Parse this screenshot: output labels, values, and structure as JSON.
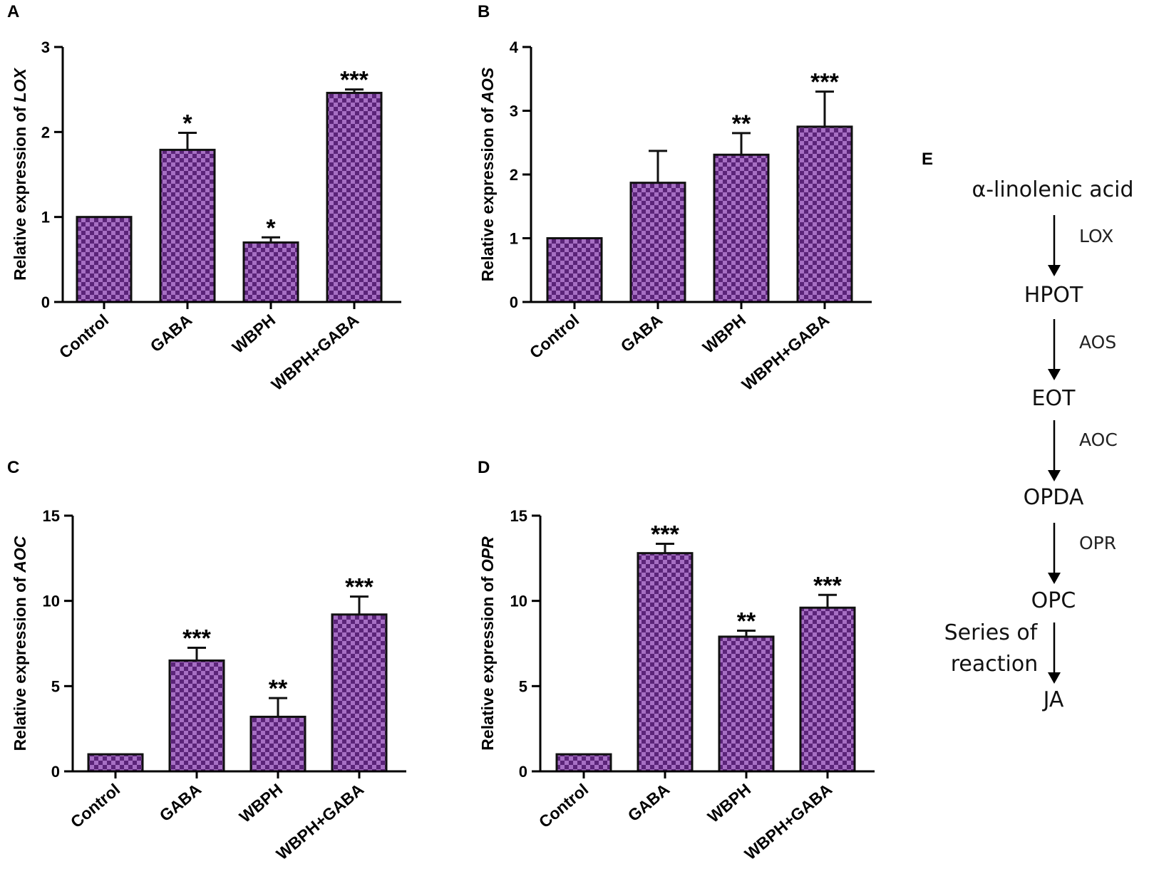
{
  "colors": {
    "bar_dark": "#5b2479",
    "bar_light": "#a66fc3",
    "bar_edge": "#111111",
    "axis": "#000000"
  },
  "chart_data": [
    {
      "panel": "A",
      "type": "bar",
      "ylabel_prefix": "Relative expression of ",
      "ylabel_gene": "LOX",
      "categories": [
        "Control",
        "GABA",
        "WBPH",
        "WBPH+GABA"
      ],
      "values": [
        1.0,
        1.79,
        0.7,
        2.46
      ],
      "errors": [
        0.0,
        0.2,
        0.06,
        0.04
      ],
      "significance": [
        "",
        "*",
        "*",
        "***"
      ],
      "ylim": [
        0,
        3
      ],
      "yticks": [
        0,
        1,
        2,
        3
      ]
    },
    {
      "panel": "B",
      "type": "bar",
      "ylabel_prefix": "Relative expression of ",
      "ylabel_gene": "AOS",
      "categories": [
        "Control",
        "GABA",
        "WBPH",
        "WBPH+GABA"
      ],
      "values": [
        1.0,
        1.87,
        2.31,
        2.75
      ],
      "errors": [
        0.0,
        0.5,
        0.34,
        0.55
      ],
      "significance": [
        "",
        "",
        "**",
        "***"
      ],
      "ylim": [
        0,
        4
      ],
      "yticks": [
        0,
        1,
        2,
        3,
        4
      ]
    },
    {
      "panel": "C",
      "type": "bar",
      "ylabel_prefix": "Relative expression of ",
      "ylabel_gene": "AOC",
      "categories": [
        "Control",
        "GABA",
        "WBPH",
        "WBPH+GABA"
      ],
      "values": [
        1.0,
        6.5,
        3.2,
        9.2
      ],
      "errors": [
        0.0,
        0.75,
        1.1,
        1.05
      ],
      "significance": [
        "",
        "***",
        "**",
        "***"
      ],
      "ylim": [
        0,
        15
      ],
      "yticks": [
        0,
        5,
        10,
        15
      ]
    },
    {
      "panel": "D",
      "type": "bar",
      "ylabel_prefix": "Relative expression of ",
      "ylabel_gene": "OPR",
      "categories": [
        "Control",
        "GABA",
        "WBPH",
        "WBPH+GABA"
      ],
      "values": [
        1.0,
        12.8,
        7.9,
        9.6
      ],
      "errors": [
        0.0,
        0.55,
        0.35,
        0.75
      ],
      "significance": [
        "",
        "***",
        "**",
        "***"
      ],
      "ylim": [
        0,
        15
      ],
      "yticks": [
        0,
        5,
        10,
        15
      ]
    }
  ],
  "pathway": {
    "panel": "E",
    "steps": [
      "α-linolenic acid",
      "HPOT",
      "EOT",
      "OPDA",
      "OPC",
      "JA"
    ],
    "enzymes": [
      "LOX",
      "AOS",
      "AOC",
      "OPR"
    ],
    "last_step_line1": "Series of",
    "last_step_line2": "reaction"
  }
}
